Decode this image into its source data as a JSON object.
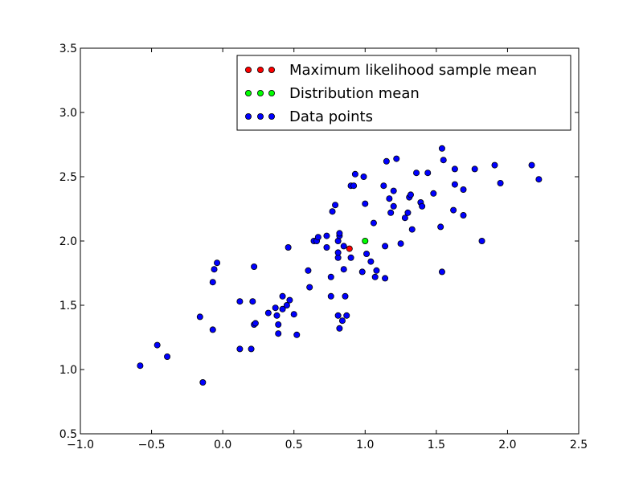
{
  "chart_data": {
    "type": "scatter",
    "title": "",
    "xlabel": "",
    "ylabel": "",
    "xlim": [
      -1.0,
      2.5
    ],
    "ylim": [
      0.5,
      3.5
    ],
    "xticks": [
      "−1.0",
      "−0.5",
      "0.0",
      "0.5",
      "1.0",
      "1.5",
      "2.0",
      "2.5"
    ],
    "xtick_values": [
      -1.0,
      -0.5,
      0.0,
      0.5,
      1.0,
      1.5,
      2.0,
      2.5
    ],
    "yticks": [
      "0.5",
      "1.0",
      "1.5",
      "2.0",
      "2.5",
      "3.0",
      "3.5"
    ],
    "ytick_values": [
      0.5,
      1.0,
      1.5,
      2.0,
      2.5,
      3.0,
      3.5
    ],
    "grid": false,
    "legend_position": "top-right",
    "series": [
      {
        "name": "Maximum likelihood sample mean",
        "color": "#ff0000",
        "points": [
          [
            0.89,
            1.94
          ]
        ]
      },
      {
        "name": "Distribution mean",
        "color": "#00ff00",
        "points": [
          [
            1.0,
            2.0
          ]
        ]
      },
      {
        "name": "Data points",
        "color": "#0000ff",
        "points": [
          [
            -0.58,
            1.03
          ],
          [
            -0.46,
            1.19
          ],
          [
            -0.39,
            1.1
          ],
          [
            -0.16,
            1.41
          ],
          [
            -0.14,
            0.9
          ],
          [
            -0.07,
            1.31
          ],
          [
            -0.07,
            1.68
          ],
          [
            -0.06,
            1.78
          ],
          [
            -0.04,
            1.83
          ],
          [
            0.12,
            1.16
          ],
          [
            0.12,
            1.53
          ],
          [
            0.2,
            1.16
          ],
          [
            0.21,
            1.53
          ],
          [
            0.22,
            1.35
          ],
          [
            0.22,
            1.8
          ],
          [
            0.23,
            1.36
          ],
          [
            0.32,
            1.44
          ],
          [
            0.37,
            1.48
          ],
          [
            0.38,
            1.42
          ],
          [
            0.39,
            1.35
          ],
          [
            0.39,
            1.28
          ],
          [
            0.42,
            1.47
          ],
          [
            0.42,
            1.57
          ],
          [
            0.45,
            1.5
          ],
          [
            0.46,
            1.95
          ],
          [
            0.47,
            1.54
          ],
          [
            0.5,
            1.43
          ],
          [
            0.52,
            1.27
          ],
          [
            0.6,
            1.77
          ],
          [
            0.61,
            1.64
          ],
          [
            0.64,
            2.0
          ],
          [
            0.66,
            2.0
          ],
          [
            0.67,
            2.03
          ],
          [
            0.73,
            1.95
          ],
          [
            0.73,
            2.04
          ],
          [
            0.76,
            1.57
          ],
          [
            0.76,
            1.72
          ],
          [
            0.77,
            2.23
          ],
          [
            0.79,
            2.28
          ],
          [
            0.81,
            1.42
          ],
          [
            0.81,
            1.87
          ],
          [
            0.81,
            1.91
          ],
          [
            0.81,
            2.0
          ],
          [
            0.82,
            1.32
          ],
          [
            0.82,
            2.04
          ],
          [
            0.82,
            2.06
          ],
          [
            0.84,
            1.38
          ],
          [
            0.85,
            1.96
          ],
          [
            0.85,
            1.78
          ],
          [
            0.86,
            1.57
          ],
          [
            0.87,
            1.42
          ],
          [
            0.9,
            1.87
          ],
          [
            0.9,
            2.43
          ],
          [
            0.92,
            2.43
          ],
          [
            0.93,
            2.52
          ],
          [
            0.98,
            1.76
          ],
          [
            0.99,
            2.5
          ],
          [
            1.0,
            2.29
          ],
          [
            1.01,
            1.9
          ],
          [
            1.04,
            1.84
          ],
          [
            1.06,
            2.14
          ],
          [
            1.07,
            1.72
          ],
          [
            1.08,
            1.77
          ],
          [
            1.13,
            2.43
          ],
          [
            1.14,
            1.96
          ],
          [
            1.14,
            1.71
          ],
          [
            1.15,
            2.62
          ],
          [
            1.17,
            2.33
          ],
          [
            1.18,
            2.22
          ],
          [
            1.2,
            2.27
          ],
          [
            1.2,
            2.39
          ],
          [
            1.22,
            2.64
          ],
          [
            1.25,
            1.98
          ],
          [
            1.28,
            2.18
          ],
          [
            1.3,
            2.22
          ],
          [
            1.31,
            2.34
          ],
          [
            1.32,
            2.36
          ],
          [
            1.33,
            2.09
          ],
          [
            1.36,
            2.53
          ],
          [
            1.39,
            2.3
          ],
          [
            1.4,
            2.27
          ],
          [
            1.44,
            2.53
          ],
          [
            1.48,
            2.37
          ],
          [
            1.53,
            2.11
          ],
          [
            1.54,
            2.72
          ],
          [
            1.55,
            2.63
          ],
          [
            1.54,
            1.76
          ],
          [
            1.62,
            2.24
          ],
          [
            1.63,
            2.44
          ],
          [
            1.63,
            2.56
          ],
          [
            1.69,
            2.2
          ],
          [
            1.69,
            2.4
          ],
          [
            1.77,
            2.56
          ],
          [
            1.82,
            2.0
          ],
          [
            1.91,
            2.59
          ],
          [
            1.95,
            2.45
          ],
          [
            2.17,
            2.59
          ],
          [
            2.22,
            2.48
          ]
        ]
      }
    ]
  },
  "legend": {
    "items": [
      {
        "label": "Maximum likelihood sample mean",
        "color": "#ff0000"
      },
      {
        "label": "Distribution mean",
        "color": "#00ff00"
      },
      {
        "label": "Data points",
        "color": "#0000ff"
      }
    ]
  }
}
